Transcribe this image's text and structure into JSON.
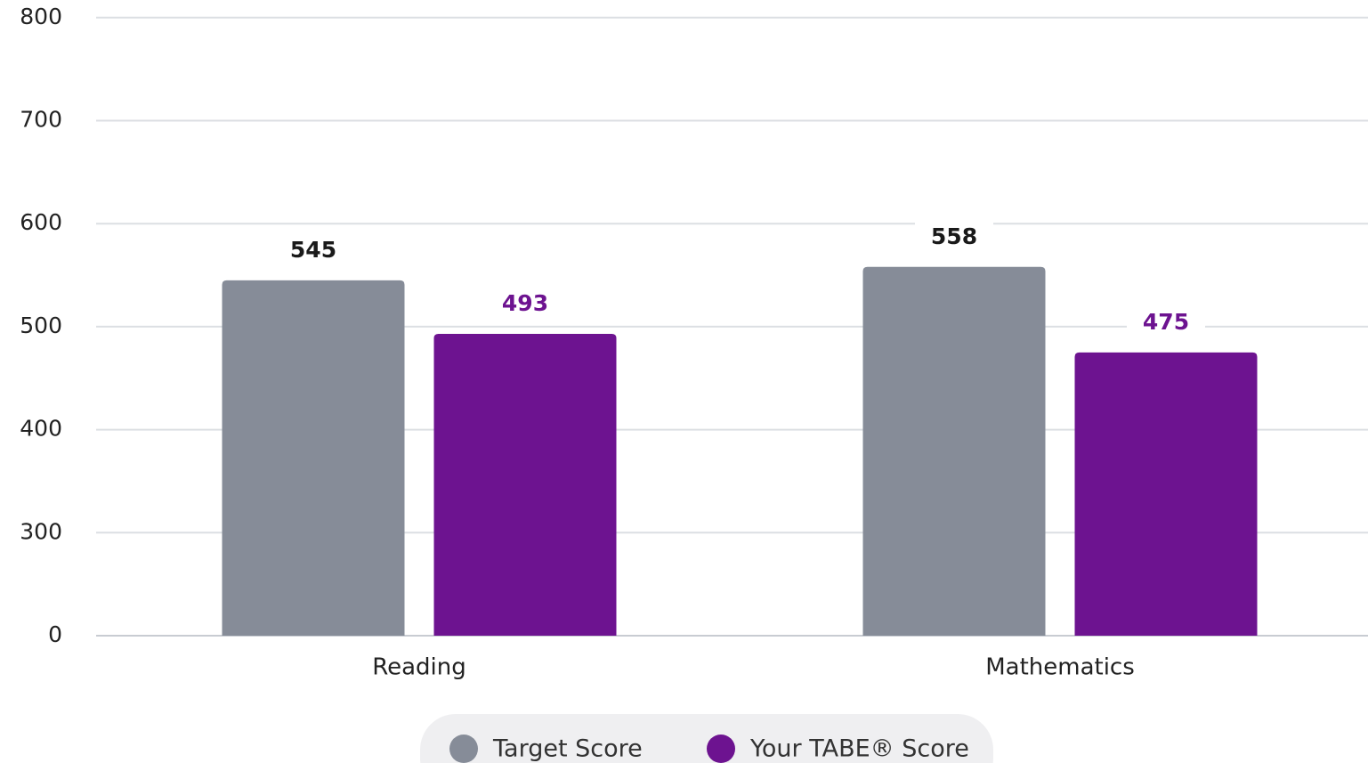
{
  "chart_data": {
    "type": "bar",
    "categories": [
      "Reading",
      "Mathematics"
    ],
    "series": [
      {
        "name": "Target Score",
        "color": "#868c98",
        "label_color": "#1a1a1a",
        "values": [
          545,
          558
        ]
      },
      {
        "name": "Your TABE® Score",
        "color": "#6d1390",
        "label_color": "#6d1390",
        "values": [
          493,
          475
        ]
      }
    ],
    "ylim": [
      0,
      800
    ],
    "yticks": [
      0,
      300,
      400,
      500,
      600,
      700,
      800
    ],
    "grid": true,
    "legend": "bottom"
  }
}
